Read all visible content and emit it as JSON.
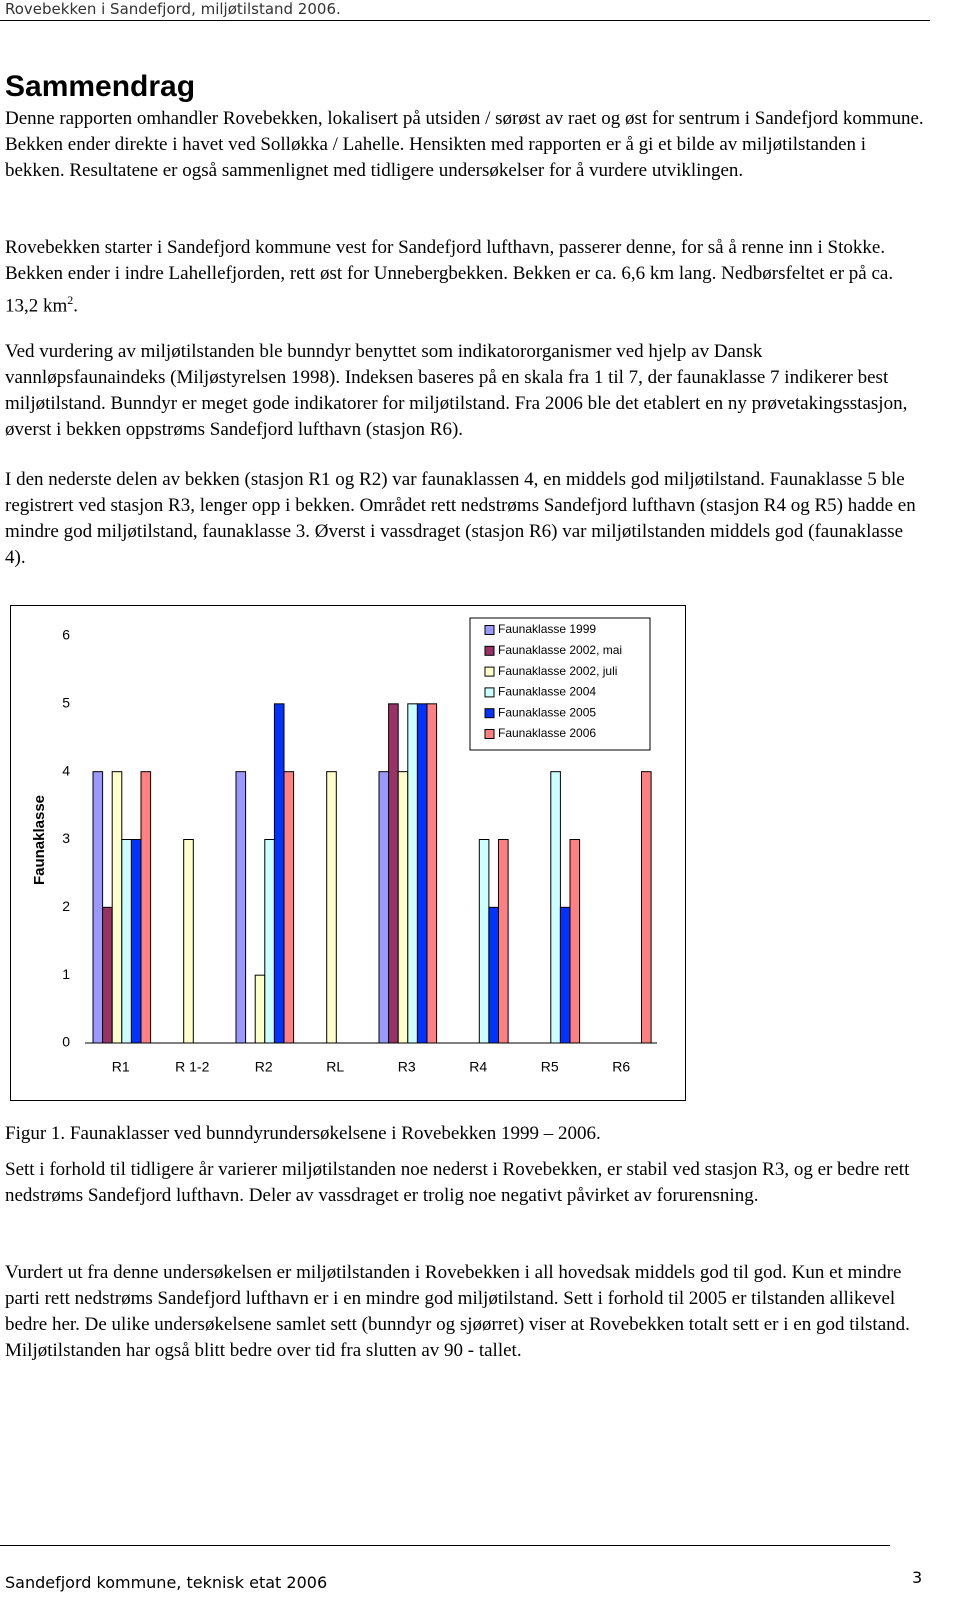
{
  "header": "Rovebekken i Sandefjord, miljøtilstand 2006.",
  "title": "Sammendrag",
  "paragraphs": [
    "Denne rapporten omhandler Rovebekken, lokalisert på utsiden / sørøst av raet og øst for sentrum i Sandefjord kommune. Bekken ender direkte i havet ved Solløkka / Lahelle. Hensikten med rapporten er å gi et bilde av miljøtilstanden i bekken. Resultatene er også sammenlignet med tidligere undersøkelser for å vurdere utviklingen.",
    {
      "text": "Rovebekken starter i Sandefjord kommune vest for Sandefjord lufthavn, passerer denne, for så å renne inn i Stokke. Bekken ender i indre Lahellefjorden, rett øst for Unnebergbekken. Bekken er ca. 6,6 km lang. Nedbørsfeltet er på ca. 13,2 km",
      "sup": "2",
      "tail": "."
    },
    "Ved vurdering av miljøtilstanden ble bunndyr benyttet som indikatororganismer ved hjelp av Dansk vannløpsfaunaindeks (Miljøstyrelsen 1998). Indeksen baseres på en skala fra 1 til 7, der faunaklasse 7 indikerer best miljøtilstand. Bunndyr er meget gode indikatorer for miljøtilstand. Fra 2006 ble det etablert en ny prøvetakingsstasjon, øverst i bekken oppstrøms Sandefjord lufthavn (stasjon R6).",
    "I den nederste delen av bekken (stasjon R1 og R2) var faunaklassen 4, en middels god miljøtilstand. Faunaklasse 5 ble registrert ved stasjon R3, lenger opp i bekken. Området rett nedstrøms Sandefjord lufthavn (stasjon R4 og R5) hadde en mindre god miljøtilstand, faunaklasse 3. Øverst i vassdraget (stasjon R6) var miljøtilstanden middels god (faunaklasse 4)."
  ],
  "chart_data": {
    "type": "bar",
    "y_label": "Faunaklasse",
    "categories": [
      "R1",
      "R 1-2",
      "R2",
      "RL",
      "R3",
      "R4",
      "R5",
      "R6"
    ],
    "series": [
      {
        "name": "Faunaklasse 1999",
        "color": "#9999ff",
        "values": [
          4,
          null,
          4,
          null,
          4,
          null,
          null,
          null
        ]
      },
      {
        "name": "Faunaklasse 2002, mai",
        "color": "#993366",
        "values": [
          2,
          null,
          null,
          null,
          5,
          null,
          null,
          null
        ]
      },
      {
        "name": "Faunaklasse 2002, juli",
        "color": "#ffffcc",
        "values": [
          4,
          3,
          1,
          4,
          4,
          null,
          null,
          null
        ]
      },
      {
        "name": "Faunaklasse 2004",
        "color": "#ccffff",
        "values": [
          3,
          null,
          3,
          null,
          5,
          3,
          4,
          null
        ]
      },
      {
        "name": "Faunaklasse 2005",
        "color": "#0033ff",
        "values": [
          3,
          null,
          5,
          null,
          5,
          2,
          2,
          null
        ]
      },
      {
        "name": "Faunaklasse 2006",
        "color": "#ff8080",
        "values": [
          4,
          null,
          4,
          null,
          5,
          3,
          3,
          4
        ]
      }
    ],
    "ylim": [
      0,
      6
    ],
    "yticks": [
      0,
      1,
      2,
      3,
      4,
      5,
      6
    ],
    "grid": false,
    "legend": "top-right"
  },
  "caption": "Figur 1. Faunaklasser ved bunndyrundersøkelsene i Rovebekken 1999 – 2006.",
  "paragraphs_after": [
    "Sett i forhold til tidligere år varierer miljøtilstanden noe nederst i Rovebekken, er stabil ved stasjon R3, og er bedre rett nedstrøms Sandefjord lufthavn. Deler av vassdraget er trolig noe negativt påvirket av forurensning.",
    "Vurdert ut fra denne undersøkelsen er miljøtilstanden i Rovebekken i all hovedsak middels god til god. Kun et mindre parti rett nedstrøms Sandefjord lufthavn er i en mindre god miljøtilstand. Sett i forhold til 2005 er tilstanden allikevel bedre her. De ulike undersøkelsene samlet sett (bunndyr og sjøørret) viser at Rovebekken totalt sett er i en god tilstand. Miljøtilstanden har også blitt bedre over tid fra slutten av 90 - tallet."
  ],
  "footer": "Sandefjord kommune, teknisk etat 2006",
  "page_number": "3"
}
